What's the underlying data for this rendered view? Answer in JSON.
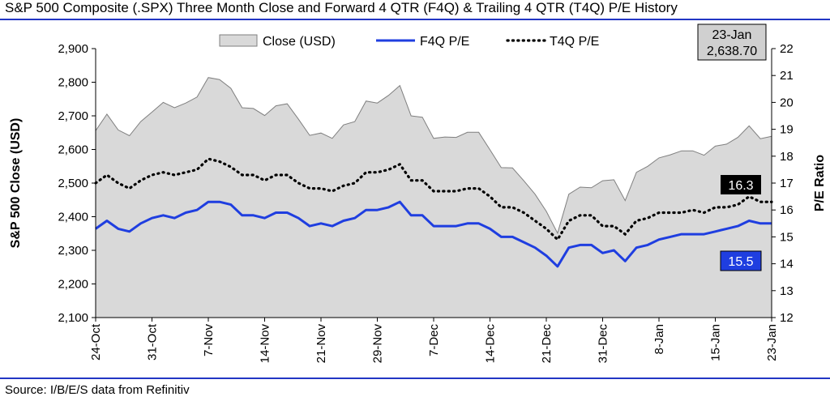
{
  "title": "S&P 500 Composite (.SPX) Three Month Close and Forward 4 QTR (F4Q) & Trailing 4 QTR (T4Q) P/E History",
  "source": "Source: I/B/E/S data from Refinitiv",
  "colors": {
    "accent_rule": "#2236c4",
    "area_fill": "#d9d9d9",
    "area_stroke": "#7f7f7f",
    "f4q_line": "#1f3ee0",
    "t4q_line": "#000000",
    "box_fill": "#d0d0d0",
    "t4q_label_bg": "#000000",
    "f4q_label_bg": "#1f3ee0"
  },
  "chart_data": {
    "type": "area+line",
    "x_tick_labels": [
      "24-Oct",
      "31-Oct",
      "7-Nov",
      "14-Nov",
      "21-Nov",
      "29-Nov",
      "7-Dec",
      "14-Dec",
      "21-Dec",
      "31-Dec",
      "8-Jan",
      "15-Jan",
      "23-Jan"
    ],
    "x_tick_indices": [
      0,
      5,
      10,
      15,
      20,
      25,
      30,
      35,
      40,
      45,
      50,
      55,
      60
    ],
    "y_left": {
      "label": "S&P 500 Close (USD)",
      "min": 2100,
      "max": 2900,
      "step": 100
    },
    "y_right": {
      "label": "P/E Ratio",
      "min": 12,
      "max": 22,
      "step": 1
    },
    "legend": [
      "Close (USD)",
      "F4Q P/E",
      "T4Q P/E"
    ],
    "legend_position": "top",
    "series": [
      {
        "name": "Close (USD)",
        "axis": "left",
        "style": "area",
        "values": [
          2656,
          2705,
          2658,
          2641,
          2683,
          2711,
          2740,
          2724,
          2738,
          2756,
          2814,
          2808,
          2782,
          2724,
          2722,
          2701,
          2730,
          2736,
          2690,
          2642,
          2649,
          2633,
          2673,
          2683,
          2744,
          2738,
          2761,
          2790,
          2700,
          2696,
          2633,
          2637,
          2636,
          2651,
          2651,
          2599,
          2546,
          2545,
          2507,
          2467,
          2416,
          2351,
          2467,
          2488,
          2486,
          2507,
          2510,
          2448,
          2532,
          2550,
          2575,
          2584,
          2596,
          2596,
          2583,
          2610,
          2616,
          2636,
          2670,
          2632,
          2639
        ]
      },
      {
        "name": "F4Q P/E",
        "axis": "right",
        "style": "line",
        "values": [
          15.3,
          15.6,
          15.3,
          15.2,
          15.5,
          15.7,
          15.8,
          15.7,
          15.9,
          16.0,
          16.3,
          16.3,
          16.2,
          15.8,
          15.8,
          15.7,
          15.9,
          15.9,
          15.7,
          15.4,
          15.5,
          15.4,
          15.6,
          15.7,
          16.0,
          16.0,
          16.1,
          16.3,
          15.8,
          15.8,
          15.4,
          15.4,
          15.4,
          15.5,
          15.5,
          15.3,
          15.0,
          15.0,
          14.8,
          14.6,
          14.3,
          13.9,
          14.6,
          14.7,
          14.7,
          14.4,
          14.5,
          14.1,
          14.6,
          14.7,
          14.9,
          15.0,
          15.1,
          15.1,
          15.1,
          15.2,
          15.3,
          15.4,
          15.6,
          15.5,
          15.5
        ]
      },
      {
        "name": "T4Q P/E",
        "axis": "right",
        "style": "dotted",
        "values": [
          17.0,
          17.3,
          17.0,
          16.8,
          17.1,
          17.3,
          17.4,
          17.3,
          17.4,
          17.5,
          17.9,
          17.8,
          17.6,
          17.3,
          17.3,
          17.1,
          17.3,
          17.3,
          17.0,
          16.8,
          16.8,
          16.7,
          16.9,
          17.0,
          17.4,
          17.4,
          17.5,
          17.7,
          17.1,
          17.1,
          16.7,
          16.7,
          16.7,
          16.8,
          16.8,
          16.5,
          16.1,
          16.1,
          15.9,
          15.6,
          15.3,
          14.9,
          15.6,
          15.8,
          15.8,
          15.4,
          15.4,
          15.1,
          15.6,
          15.7,
          15.9,
          15.9,
          15.9,
          16.0,
          15.9,
          16.1,
          16.1,
          16.2,
          16.5,
          16.3,
          16.3
        ]
      }
    ],
    "annotations": {
      "last_date": "23-Jan",
      "last_close": "2,638.70",
      "t4q_last_label": "16.3",
      "f4q_last_label": "15.5"
    }
  }
}
